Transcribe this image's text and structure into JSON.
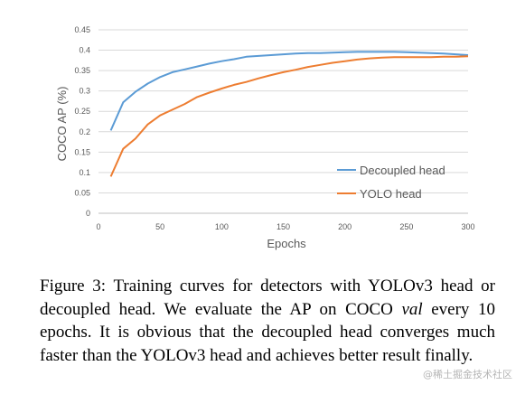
{
  "chart_data": {
    "type": "line",
    "xlabel": "Epochs",
    "ylabel": "COCO AP (%)",
    "xlim": [
      0,
      300
    ],
    "ylim": [
      0,
      0.45
    ],
    "x_ticks": [
      "0",
      "50",
      "100",
      "150",
      "200",
      "250",
      "300"
    ],
    "y_ticks": [
      "0",
      "0.05",
      "0.1",
      "0.15",
      "0.2",
      "0.25",
      "0.3",
      "0.35",
      "0.4",
      "0.45"
    ],
    "grid": "horizontal",
    "legend_position": "bottom-right",
    "x": [
      10,
      20,
      30,
      40,
      50,
      60,
      70,
      80,
      90,
      100,
      110,
      120,
      130,
      140,
      150,
      160,
      170,
      180,
      190,
      200,
      210,
      220,
      230,
      240,
      250,
      260,
      270,
      280,
      290,
      300
    ],
    "series": [
      {
        "name": "Decoupled head",
        "color": "#5b9bd5",
        "values": [
          0.203,
          0.272,
          0.298,
          0.318,
          0.334,
          0.346,
          0.353,
          0.36,
          0.367,
          0.373,
          0.378,
          0.384,
          0.386,
          0.388,
          0.39,
          0.392,
          0.393,
          0.393,
          0.394,
          0.395,
          0.396,
          0.396,
          0.396,
          0.396,
          0.395,
          0.394,
          0.393,
          0.392,
          0.39,
          0.388
        ]
      },
      {
        "name": "YOLO head",
        "color": "#ed7d31",
        "values": [
          0.09,
          0.158,
          0.183,
          0.218,
          0.24,
          0.254,
          0.268,
          0.285,
          0.296,
          0.306,
          0.315,
          0.322,
          0.331,
          0.339,
          0.346,
          0.352,
          0.359,
          0.364,
          0.369,
          0.373,
          0.377,
          0.38,
          0.382,
          0.383,
          0.383,
          0.383,
          0.383,
          0.384,
          0.384,
          0.385
        ]
      }
    ]
  },
  "caption": {
    "part1": "Figure 3: Training curves for detectors with YOLOv3 head or decoupled head. We evaluate the AP on COCO ",
    "italic": "val",
    "part2": " every 10 epochs. It is obvious that the decoupled head converges much faster than the YOLOv3 head and achieves better result finally."
  },
  "watermark": "@稀土掘金技术社区"
}
